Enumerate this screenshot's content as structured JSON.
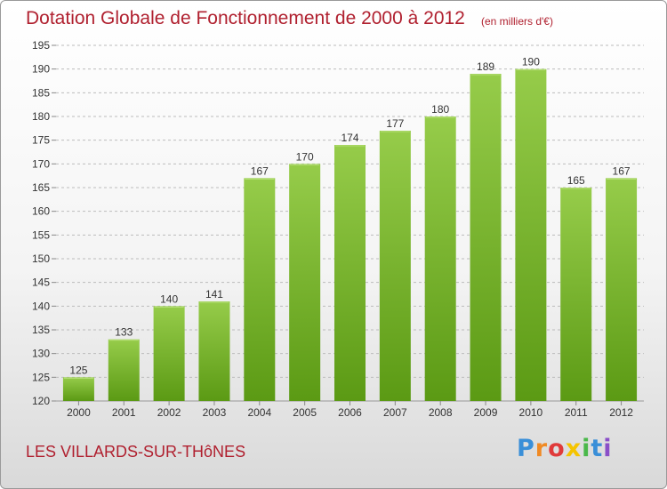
{
  "header": {
    "title": "Dotation Globale de Fonctionnement de 2000 à 2012",
    "unit": "(en milliers d'€)"
  },
  "footer": {
    "commune": "LES VILLARDS-SUR-THôNES",
    "brand": "Proxiti",
    "brand_colors": [
      "#3a8fd8",
      "#f08a24",
      "#e03a3a",
      "#f5c400",
      "#4ab84a",
      "#3a8fd8",
      "#8a4fc8"
    ]
  },
  "colors": {
    "bar_top": "#96cc4a",
    "bar_bottom": "#5b9a14",
    "grid": "#bcbcbc",
    "axis_text": "#333333",
    "title": "#b0202f"
  },
  "chart_data": {
    "type": "bar",
    "title": "Dotation Globale de Fonctionnement de 2000 à 2012",
    "subtitle": "(en milliers d'€)",
    "categories": [
      "2000",
      "2001",
      "2002",
      "2003",
      "2004",
      "2005",
      "2006",
      "2007",
      "2008",
      "2009",
      "2010",
      "2011",
      "2012"
    ],
    "values": [
      125,
      133,
      140,
      141,
      167,
      170,
      174,
      177,
      180,
      189,
      190,
      165,
      167
    ],
    "ylim": [
      120,
      195
    ],
    "yticks": [
      120,
      125,
      130,
      135,
      140,
      145,
      150,
      155,
      160,
      165,
      170,
      175,
      180,
      185,
      190,
      195
    ],
    "grid": "horizontal, dashed",
    "data_labels": true,
    "xlabel": "",
    "ylabel": ""
  }
}
